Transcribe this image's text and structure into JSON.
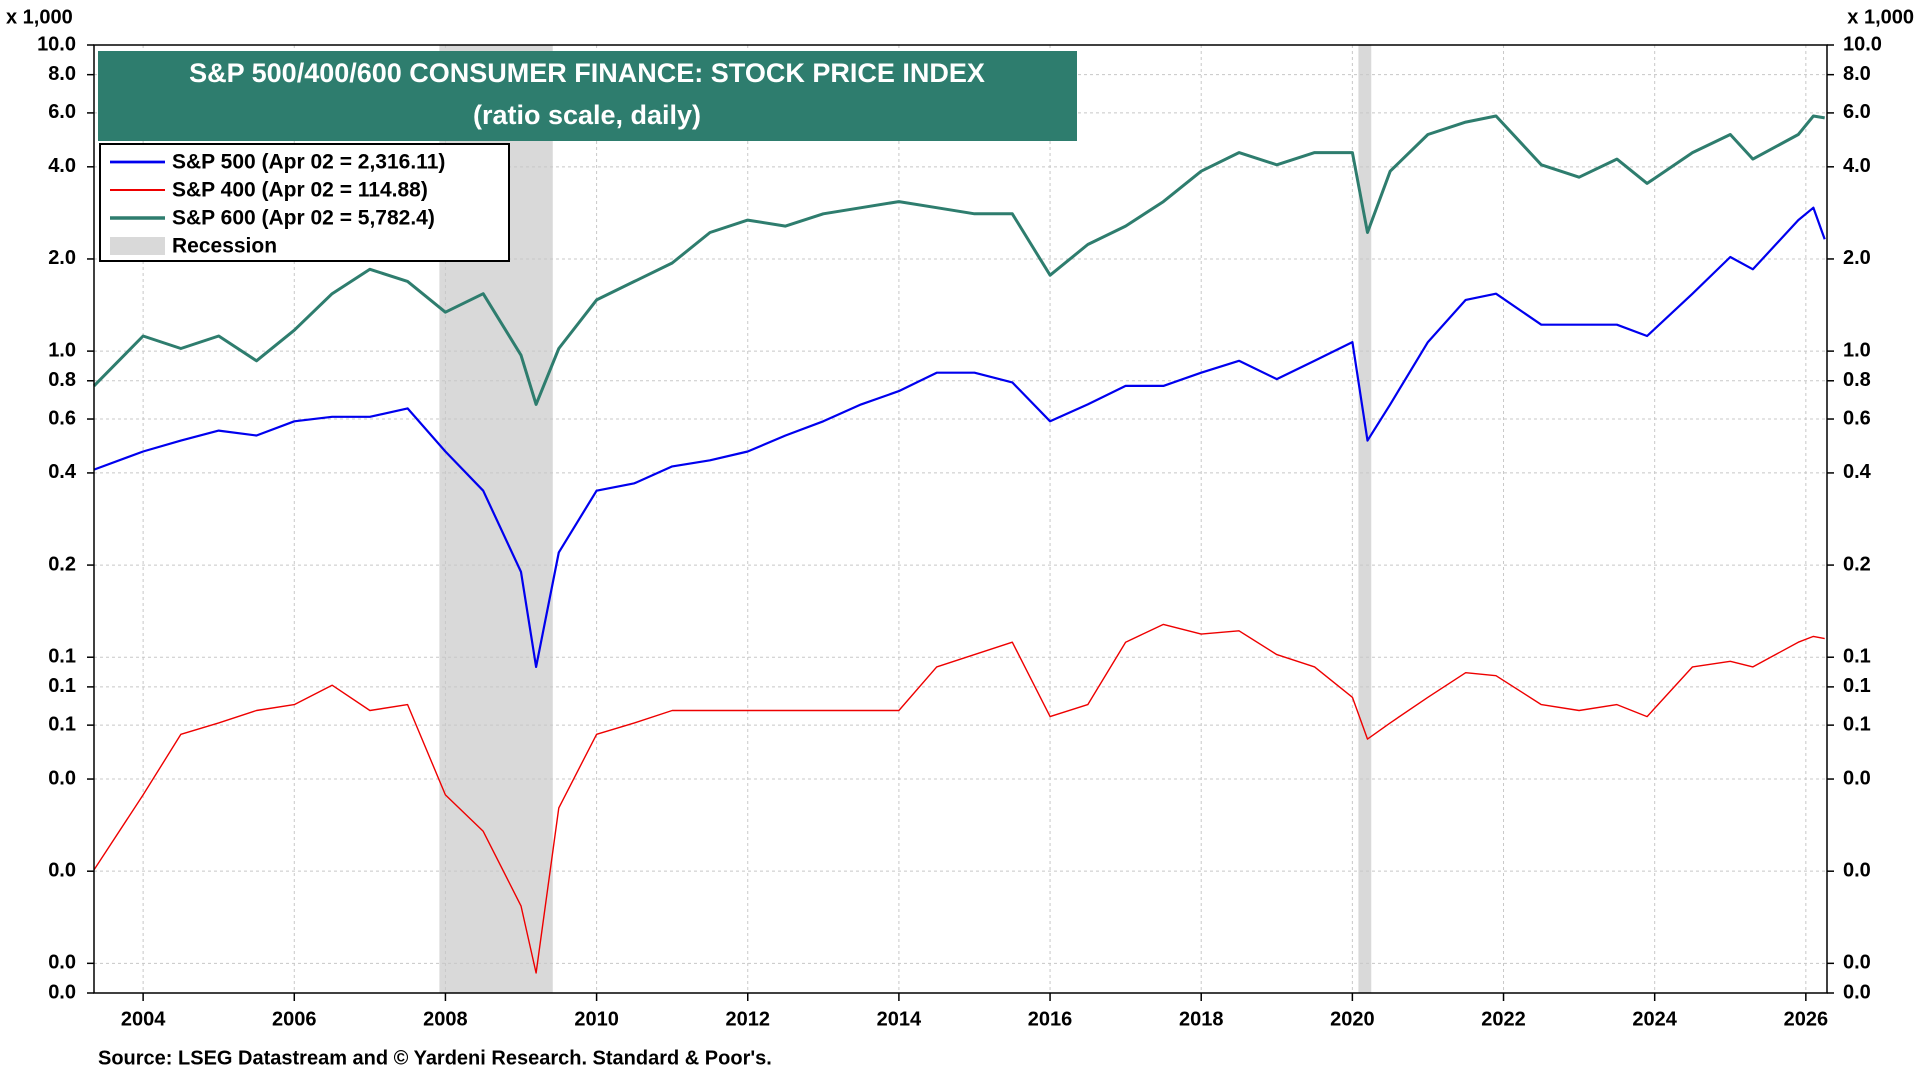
{
  "chart_data": {
    "type": "line",
    "title": "S&P 500/400/600 CONSUMER FINANCE: STOCK PRICE INDEX",
    "subtitle": "(ratio scale, daily)",
    "y_unit_label": "x 1,000",
    "source": "Source: LSEG Datastream and © Yardeni Research. Standard & Poor's.",
    "log_scale": true,
    "grid": true,
    "legend_position": "top-left",
    "xlim": [
      2003.35,
      2026.28
    ],
    "xticks": [
      2004,
      2006,
      2008,
      2010,
      2012,
      2014,
      2016,
      2018,
      2020,
      2022,
      2024,
      2026
    ],
    "ylim": [
      0.008,
      10
    ],
    "yticks": [
      {
        "value": 10,
        "label": "10.0"
      },
      {
        "value": 8,
        "label": "8.0"
      },
      {
        "value": 6,
        "label": "6.0"
      },
      {
        "value": 4,
        "label": "4.0"
      },
      {
        "value": 2,
        "label": "2.0"
      },
      {
        "value": 1,
        "label": "1.0"
      },
      0.8,
      0.6,
      0.4,
      0.2,
      0.1,
      {
        "value": 0.08,
        "label": "0.1"
      },
      {
        "value": 0.06,
        "label": "0.1"
      },
      {
        "value": 0.04,
        "label": "0.0"
      },
      {
        "value": 0.02,
        "label": "0.0"
      },
      {
        "value": 0.01,
        "label": "0.0"
      },
      {
        "value": 0.008,
        "label": "0.0"
      }
    ],
    "recession": {
      "name": "Recession",
      "color": "#d9d9d9",
      "spans": [
        [
          2007.92,
          2009.42
        ],
        [
          2020.08,
          2020.25
        ]
      ]
    },
    "x": [
      2003.35,
      2004,
      2004.5,
      2005,
      2005.5,
      2006,
      2006.5,
      2007,
      2007.5,
      2008,
      2008.5,
      2009,
      2009.2,
      2009.5,
      2010,
      2010.5,
      2011,
      2011.5,
      2012,
      2012.5,
      2013,
      2013.5,
      2014,
      2014.5,
      2015,
      2015.5,
      2016,
      2016.5,
      2017,
      2017.5,
      2018,
      2018.5,
      2019,
      2019.5,
      2020,
      2020.2,
      2020.5,
      2021,
      2021.5,
      2021.9,
      2022.5,
      2023,
      2023.5,
      2023.9,
      2024.5,
      2025,
      2025.3,
      2025.9,
      2026.1,
      2026.25
    ],
    "series": [
      {
        "name": "S&P 500 (Apr 02 = 2,316.11)",
        "color": "#0000ee",
        "width": 2.2,
        "values": [
          0.41,
          0.47,
          0.51,
          0.55,
          0.53,
          0.59,
          0.61,
          0.61,
          0.65,
          0.47,
          0.35,
          0.19,
          0.093,
          0.22,
          0.35,
          0.37,
          0.42,
          0.44,
          0.47,
          0.53,
          0.59,
          0.67,
          0.74,
          0.85,
          0.85,
          0.79,
          0.59,
          0.67,
          0.77,
          0.77,
          0.85,
          0.93,
          0.81,
          0.93,
          1.07,
          0.51,
          0.67,
          1.07,
          1.47,
          1.54,
          1.22,
          1.22,
          1.22,
          1.12,
          1.54,
          2.03,
          1.85,
          2.68,
          2.94,
          2.32
        ]
      },
      {
        "name": "S&P 400 (Apr 02 = 114.88)",
        "color": "#ee0000",
        "width": 1.4,
        "values": [
          0.0202,
          0.0355,
          0.056,
          0.061,
          0.067,
          0.07,
          0.081,
          0.067,
          0.07,
          0.0355,
          0.027,
          0.0154,
          0.0093,
          0.0322,
          0.056,
          0.061,
          0.067,
          0.067,
          0.067,
          0.067,
          0.067,
          0.067,
          0.067,
          0.093,
          0.102,
          0.112,
          0.064,
          0.07,
          0.112,
          0.128,
          0.119,
          0.122,
          0.102,
          0.093,
          0.074,
          0.054,
          0.061,
          0.074,
          0.089,
          0.087,
          0.07,
          0.067,
          0.07,
          0.064,
          0.093,
          0.097,
          0.093,
          0.112,
          0.117,
          0.115
        ]
      },
      {
        "name": "S&P 600 (Apr 02 = 5,782.4)",
        "color": "#2e7d6e",
        "width": 3,
        "values": [
          0.77,
          1.12,
          1.02,
          1.12,
          0.93,
          1.17,
          1.54,
          1.85,
          1.69,
          1.34,
          1.54,
          0.97,
          0.67,
          1.02,
          1.47,
          1.69,
          1.94,
          2.44,
          2.68,
          2.56,
          2.81,
          2.94,
          3.08,
          2.94,
          2.81,
          2.81,
          1.77,
          2.23,
          2.56,
          3.08,
          3.87,
          4.45,
          4.06,
          4.45,
          4.45,
          2.44,
          3.87,
          5.1,
          5.6,
          5.86,
          4.06,
          3.7,
          4.24,
          3.53,
          4.45,
          5.1,
          4.24,
          5.1,
          5.86,
          5.78
        ]
      }
    ]
  }
}
